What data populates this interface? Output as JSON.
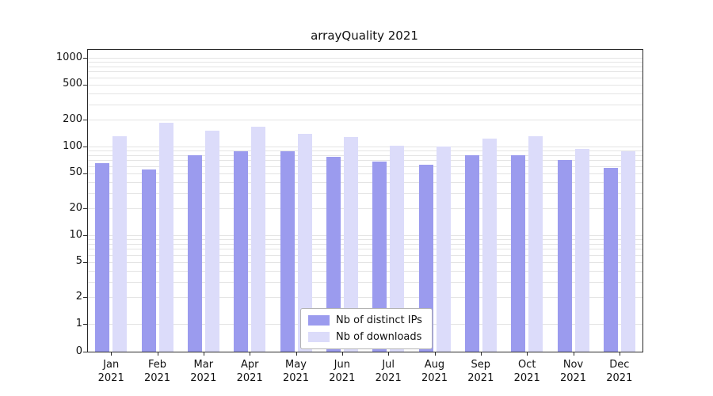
{
  "chart_data": {
    "type": "bar",
    "title": "arrayQuality 2021",
    "year_label": "2021",
    "categories": [
      "Jan",
      "Feb",
      "Mar",
      "Apr",
      "May",
      "Jun",
      "Jul",
      "Aug",
      "Sep",
      "Oct",
      "Nov",
      "Dec"
    ],
    "series": [
      {
        "name": "Nb of distinct IPs",
        "color": "#9b9bee",
        "values": [
          65,
          55,
          80,
          88,
          88,
          76,
          68,
          62,
          80,
          80,
          71,
          58
        ]
      },
      {
        "name": "Nb of downloads",
        "color": "#dcdcfa",
        "values": [
          130,
          185,
          150,
          168,
          140,
          128,
          103,
          100,
          122,
          130,
          95,
          88
        ]
      }
    ],
    "yticks": [
      0,
      1,
      2,
      5,
      10,
      20,
      50,
      100,
      200,
      500,
      1000
    ],
    "yscale": "symlog",
    "ylim": [
      0,
      1400
    ],
    "grid": "horizontal-minor",
    "legend_position": "lower-center",
    "axis_color": "#2a2a2a",
    "gridline_color": "#e4e4e4"
  }
}
